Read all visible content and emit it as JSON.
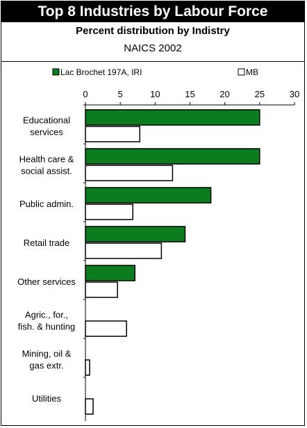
{
  "header": {
    "title": "Top 8 Industries by Labour Force",
    "subtitle": "Percent distribution by Indistry",
    "subtitle2": "NAICS 2002"
  },
  "chart_data": {
    "type": "bar",
    "orientation": "horizontal",
    "categories": [
      [
        "Educational",
        "services"
      ],
      [
        "Health care &",
        "social assist."
      ],
      [
        "Public admin."
      ],
      [
        "Retail trade"
      ],
      [
        "Other services"
      ],
      [
        "Agric., for.,",
        "fish. & hunting"
      ],
      [
        "Mining, oil &",
        "gas extr."
      ],
      [
        "Utilities"
      ]
    ],
    "series": [
      {
        "name": "Lac Brochet 197A, IRI",
        "color": "#0b7d1e",
        "values": [
          25.0,
          25.0,
          18.0,
          14.3,
          7.1,
          0,
          0,
          0
        ]
      },
      {
        "name": "MB",
        "color": "#ffffff",
        "values": [
          7.8,
          12.5,
          6.8,
          10.9,
          4.6,
          5.9,
          0.6,
          1.1
        ]
      }
    ],
    "xlim": [
      0,
      30
    ],
    "xticks": [
      "0",
      "5",
      "10",
      "15",
      "20",
      "25",
      "30"
    ],
    "legend_position": "top",
    "grid": false
  }
}
